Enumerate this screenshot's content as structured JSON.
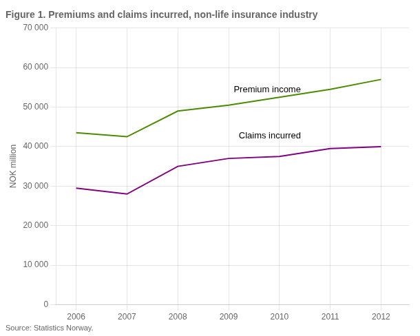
{
  "chart_data": {
    "type": "line",
    "title": "Figure 1. Premiums and claims incurred, non-life insurance industry",
    "ylabel": "NOK million",
    "source": "Source: Statistics Norway.",
    "x": [
      2006,
      2007,
      2008,
      2009,
      2010,
      2011,
      2012
    ],
    "series": [
      {
        "name": "Premium income",
        "color": "#4a8c00",
        "values": [
          43500,
          42500,
          49000,
          50500,
          52500,
          54500,
          57000
        ]
      },
      {
        "name": "Claims incurred",
        "color": "#800080",
        "values": [
          29500,
          28000,
          35000,
          37000,
          37500,
          39500,
          40000
        ]
      }
    ],
    "xlim": [
      2005.6,
      2012.55
    ],
    "xticks": [
      2006,
      2007,
      2008,
      2009,
      2010,
      2011,
      2012
    ],
    "ylim": [
      0,
      70000
    ],
    "yticks": [
      0,
      {
        "value": 10000,
        "label": "10 000"
      },
      {
        "value": 20000,
        "label": "20 000"
      },
      {
        "value": 30000,
        "label": "30 000"
      },
      {
        "value": 40000,
        "label": "40 000"
      },
      {
        "value": 50000,
        "label": "50 000"
      },
      {
        "value": 60000,
        "label": "60 000"
      },
      {
        "value": 70000,
        "label": "70 000"
      }
    ],
    "grid": true,
    "annotations": [
      {
        "text": "Premium income",
        "x": 2009.1,
        "y": 53200
      },
      {
        "text": "Claims incurred",
        "x": 2009.2,
        "y": 41500
      }
    ]
  }
}
